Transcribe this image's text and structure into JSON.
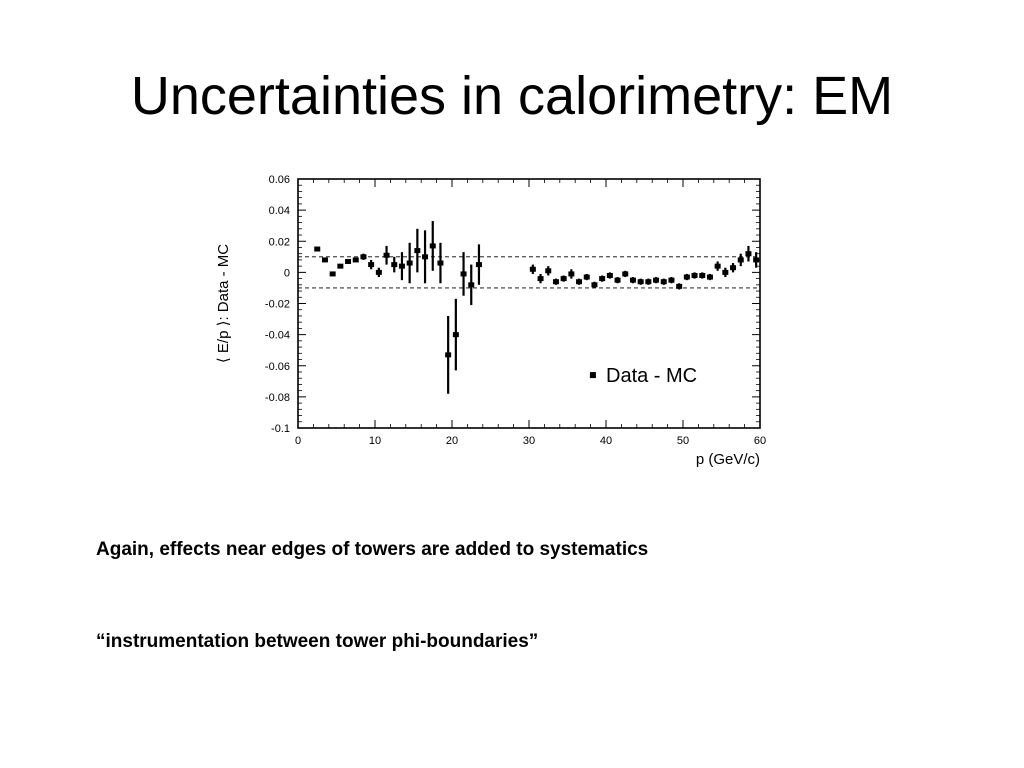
{
  "slide": {
    "title": "Uncertainties in calorimetry: EM",
    "caption_1": "Again, effects near edges of towers are added to systematics",
    "caption_2": "“instrumentation between tower phi-boundaries”"
  },
  "chart_data": {
    "type": "scatter",
    "title": "",
    "xlabel": "p (GeV/c)",
    "ylabel": "⟨ E/p ⟩: Data - MC",
    "xlim": [
      0,
      60
    ],
    "ylim": [
      -0.1,
      0.06
    ],
    "x_ticks": [
      0,
      10,
      20,
      30,
      40,
      50,
      60
    ],
    "y_ticks": [
      0.06,
      0.04,
      0.02,
      0,
      -0.02,
      -0.04,
      -0.06,
      -0.08,
      -0.1
    ],
    "x_tick_labels": [
      "0",
      "10",
      "20",
      "30",
      "40",
      "50",
      "60"
    ],
    "y_tick_labels": [
      "0.06",
      "0.04",
      "0.02",
      "0",
      "-0.02",
      "-0.04",
      "-0.06",
      "-0.08",
      "-0.1"
    ],
    "reference_lines": [
      0.01,
      -0.01
    ],
    "grid": false,
    "legend": {
      "placement": "bottom-right"
    },
    "series": [
      {
        "name": "Data - MC",
        "points": [
          {
            "x": 2.5,
            "y": 0.015,
            "err": 0.001
          },
          {
            "x": 3.5,
            "y": 0.008,
            "err": 0.001
          },
          {
            "x": 4.5,
            "y": -0.001,
            "err": 0.001
          },
          {
            "x": 5.5,
            "y": 0.004,
            "err": 0.001
          },
          {
            "x": 6.5,
            "y": 0.007,
            "err": 0.001
          },
          {
            "x": 7.5,
            "y": 0.008,
            "err": 0.001
          },
          {
            "x": 8.5,
            "y": 0.01,
            "err": 0.002
          },
          {
            "x": 9.5,
            "y": 0.005,
            "err": 0.003
          },
          {
            "x": 10.5,
            "y": 0.0,
            "err": 0.003
          },
          {
            "x": 11.5,
            "y": 0.011,
            "err": 0.006
          },
          {
            "x": 12.5,
            "y": 0.005,
            "err": 0.005
          },
          {
            "x": 13.5,
            "y": 0.004,
            "err": 0.009
          },
          {
            "x": 14.5,
            "y": 0.006,
            "err": 0.013
          },
          {
            "x": 15.5,
            "y": 0.014,
            "err": 0.014
          },
          {
            "x": 16.5,
            "y": 0.01,
            "err": 0.017
          },
          {
            "x": 17.5,
            "y": 0.017,
            "err": 0.016
          },
          {
            "x": 18.5,
            "y": 0.006,
            "err": 0.013
          },
          {
            "x": 19.5,
            "y": -0.053,
            "err": 0.025
          },
          {
            "x": 20.5,
            "y": -0.04,
            "err": 0.023
          },
          {
            "x": 21.5,
            "y": -0.001,
            "err": 0.014
          },
          {
            "x": 22.5,
            "y": -0.008,
            "err": 0.013
          },
          {
            "x": 23.5,
            "y": 0.005,
            "err": 0.013
          },
          {
            "x": 30.5,
            "y": 0.002,
            "err": 0.003
          },
          {
            "x": 31.5,
            "y": -0.004,
            "err": 0.003
          },
          {
            "x": 32.5,
            "y": 0.001,
            "err": 0.003
          },
          {
            "x": 33.5,
            "y": -0.006,
            "err": 0.002
          },
          {
            "x": 34.5,
            "y": -0.004,
            "err": 0.002
          },
          {
            "x": 35.5,
            "y": -0.001,
            "err": 0.003
          },
          {
            "x": 36.5,
            "y": -0.006,
            "err": 0.002
          },
          {
            "x": 37.5,
            "y": -0.003,
            "err": 0.002
          },
          {
            "x": 38.5,
            "y": -0.008,
            "err": 0.002
          },
          {
            "x": 39.5,
            "y": -0.004,
            "err": 0.002
          },
          {
            "x": 40.5,
            "y": -0.002,
            "err": 0.002
          },
          {
            "x": 41.5,
            "y": -0.005,
            "err": 0.002
          },
          {
            "x": 42.5,
            "y": -0.001,
            "err": 0.002
          },
          {
            "x": 43.5,
            "y": -0.005,
            "err": 0.002
          },
          {
            "x": 44.5,
            "y": -0.006,
            "err": 0.002
          },
          {
            "x": 45.5,
            "y": -0.006,
            "err": 0.002
          },
          {
            "x": 46.5,
            "y": -0.005,
            "err": 0.002
          },
          {
            "x": 47.5,
            "y": -0.006,
            "err": 0.002
          },
          {
            "x": 48.5,
            "y": -0.005,
            "err": 0.002
          },
          {
            "x": 49.5,
            "y": -0.009,
            "err": 0.002
          },
          {
            "x": 50.5,
            "y": -0.003,
            "err": 0.002
          },
          {
            "x": 51.5,
            "y": -0.002,
            "err": 0.002
          },
          {
            "x": 52.5,
            "y": -0.002,
            "err": 0.002
          },
          {
            "x": 53.5,
            "y": -0.003,
            "err": 0.002
          },
          {
            "x": 54.5,
            "y": 0.004,
            "err": 0.003
          },
          {
            "x": 55.5,
            "y": 0.0,
            "err": 0.003
          },
          {
            "x": 56.5,
            "y": 0.003,
            "err": 0.003
          },
          {
            "x": 57.5,
            "y": 0.008,
            "err": 0.004
          },
          {
            "x": 58.5,
            "y": 0.012,
            "err": 0.005
          },
          {
            "x": 59.5,
            "y": 0.008,
            "err": 0.005
          }
        ]
      }
    ]
  }
}
